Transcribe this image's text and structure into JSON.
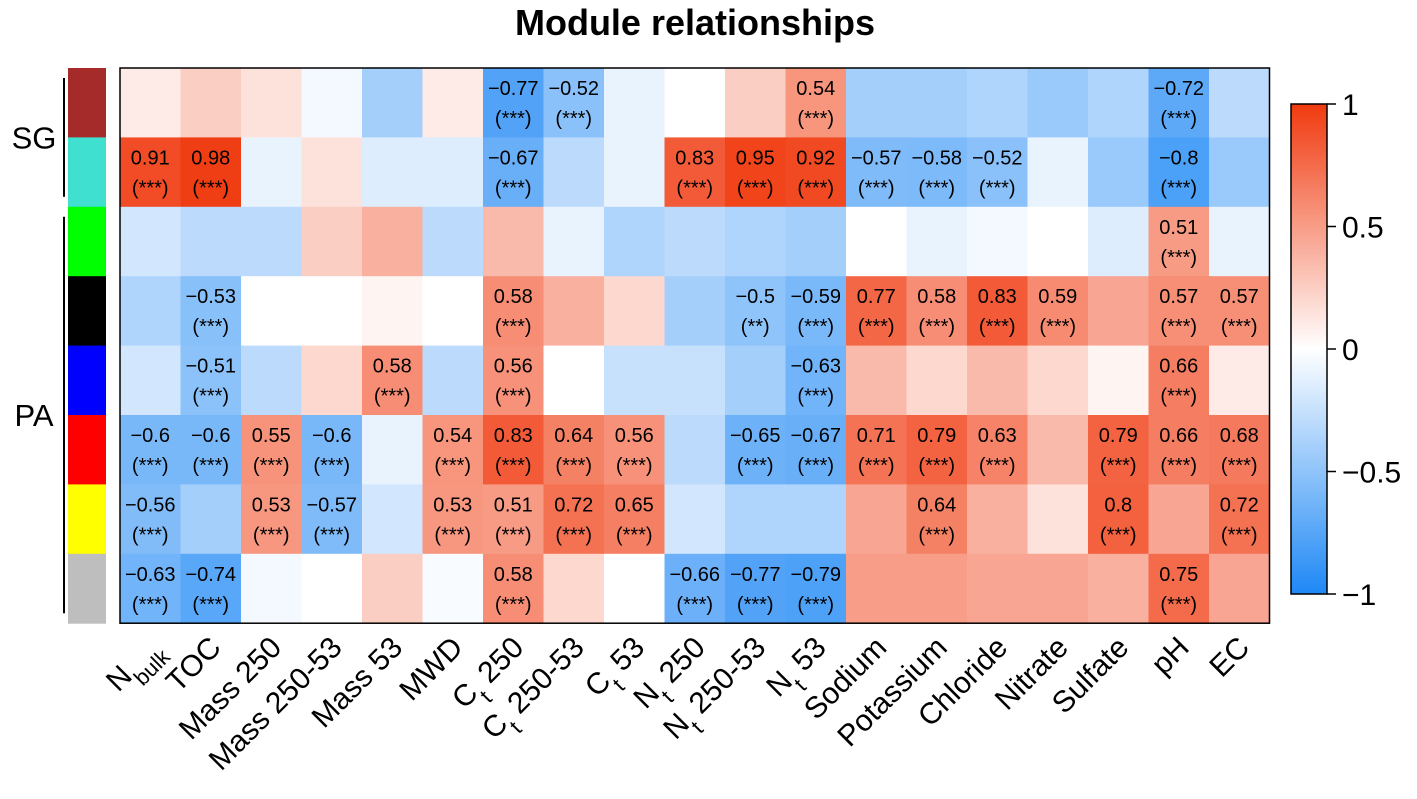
{
  "chart_data": {
    "type": "heatmap",
    "title": "Module relationships",
    "rows": [
      "brown",
      "turquoise",
      "green",
      "black",
      "blue",
      "red",
      "yellow",
      "grey"
    ],
    "row_colors": [
      "#a52a2a",
      "#40e0d0",
      "#00ff00",
      "#000000",
      "#0000ff",
      "#ff0000",
      "#ffff00",
      "#bebebe"
    ],
    "row_groups": [
      {
        "label": "SG",
        "rows": [
          "brown",
          "turquoise"
        ]
      },
      {
        "label": "PA",
        "rows": [
          "green",
          "black",
          "blue",
          "red",
          "yellow",
          "grey"
        ]
      }
    ],
    "columns": [
      {
        "label": "Nbulk",
        "base": "N",
        "sub": "bulk",
        "rest": ""
      },
      {
        "label": "TOC",
        "base": "TOC",
        "sub": "",
        "rest": ""
      },
      {
        "label": "Mass 250",
        "base": "Mass 250",
        "sub": "",
        "rest": ""
      },
      {
        "label": "Mass 250-53",
        "base": "Mass 250-53",
        "sub": "",
        "rest": ""
      },
      {
        "label": "Mass 53",
        "base": "Mass 53",
        "sub": "",
        "rest": ""
      },
      {
        "label": "MWD",
        "base": "MWD",
        "sub": "",
        "rest": ""
      },
      {
        "label": "Ct 250",
        "base": "C",
        "sub": "t",
        "rest": " 250"
      },
      {
        "label": "Ct 250-53",
        "base": "C",
        "sub": "t",
        "rest": " 250-53"
      },
      {
        "label": "Ct 53",
        "base": "C",
        "sub": "t",
        "rest": " 53"
      },
      {
        "label": "Nt 250",
        "base": "N",
        "sub": "t",
        "rest": " 250"
      },
      {
        "label": "Nt 250-53",
        "base": "N",
        "sub": "t",
        "rest": " 250-53"
      },
      {
        "label": "Nt 53",
        "base": "N",
        "sub": "t",
        "rest": " 53"
      },
      {
        "label": "Sodium",
        "base": "Sodium",
        "sub": "",
        "rest": ""
      },
      {
        "label": "Potassium",
        "base": "Potassium",
        "sub": "",
        "rest": ""
      },
      {
        "label": "Chloride",
        "base": "Chloride",
        "sub": "",
        "rest": ""
      },
      {
        "label": "Nitrate",
        "base": "Nitrate",
        "sub": "",
        "rest": ""
      },
      {
        "label": "Sulfate",
        "base": "Sulfate",
        "sub": "",
        "rest": ""
      },
      {
        "label": "pH",
        "base": "pH",
        "sub": "",
        "rest": ""
      },
      {
        "label": "EC",
        "base": "EC",
        "sub": "",
        "rest": ""
      }
    ],
    "values": [
      [
        0.1,
        0.25,
        0.15,
        -0.05,
        -0.4,
        0.1,
        -0.77,
        -0.52,
        -0.1,
        0.0,
        0.25,
        0.54,
        -0.4,
        -0.4,
        -0.35,
        -0.45,
        -0.35,
        -0.72,
        -0.3
      ],
      [
        0.91,
        0.98,
        -0.1,
        0.15,
        -0.15,
        -0.15,
        -0.67,
        -0.3,
        -0.1,
        0.83,
        0.95,
        0.92,
        -0.57,
        -0.58,
        -0.52,
        -0.1,
        -0.45,
        -0.8,
        -0.45
      ],
      [
        -0.2,
        -0.3,
        -0.3,
        0.25,
        0.4,
        -0.3,
        0.35,
        -0.1,
        -0.35,
        -0.3,
        -0.35,
        -0.4,
        0.0,
        -0.1,
        -0.05,
        0.0,
        -0.15,
        0.51,
        -0.1
      ],
      [
        -0.35,
        -0.53,
        0.0,
        0.0,
        0.05,
        0.0,
        0.58,
        0.4,
        0.2,
        -0.4,
        -0.5,
        -0.59,
        0.77,
        0.58,
        0.83,
        0.59,
        0.45,
        0.57,
        0.57
      ],
      [
        -0.2,
        -0.51,
        -0.3,
        0.2,
        0.58,
        -0.3,
        0.56,
        0.0,
        -0.25,
        -0.25,
        -0.4,
        -0.63,
        0.35,
        0.2,
        0.35,
        0.2,
        0.05,
        0.66,
        0.1
      ],
      [
        -0.6,
        -0.6,
        0.55,
        -0.6,
        -0.1,
        0.54,
        0.83,
        0.64,
        0.56,
        -0.3,
        -0.65,
        -0.67,
        0.71,
        0.79,
        0.63,
        0.35,
        0.79,
        0.66,
        0.68
      ],
      [
        -0.56,
        -0.4,
        0.53,
        -0.57,
        -0.2,
        0.53,
        0.51,
        0.72,
        0.65,
        -0.2,
        -0.35,
        -0.35,
        0.45,
        0.64,
        0.4,
        0.15,
        0.8,
        0.45,
        0.72
      ],
      [
        -0.63,
        -0.74,
        -0.05,
        0.0,
        0.25,
        -0.03,
        0.58,
        0.2,
        0.0,
        -0.66,
        -0.77,
        -0.79,
        0.5,
        0.5,
        0.45,
        0.45,
        0.4,
        0.75,
        0.45
      ]
    ],
    "labeled_cells": [
      {
        "row": 0,
        "col": 6,
        "value": "−0.77",
        "sig": "(***)"
      },
      {
        "row": 0,
        "col": 7,
        "value": "−0.52",
        "sig": "(***)"
      },
      {
        "row": 0,
        "col": 11,
        "value": "0.54",
        "sig": "(***)"
      },
      {
        "row": 0,
        "col": 17,
        "value": "−0.72",
        "sig": "(***)"
      },
      {
        "row": 1,
        "col": 0,
        "value": "0.91",
        "sig": "(***)"
      },
      {
        "row": 1,
        "col": 1,
        "value": "0.98",
        "sig": "(***)"
      },
      {
        "row": 1,
        "col": 6,
        "value": "−0.67",
        "sig": "(***)"
      },
      {
        "row": 1,
        "col": 9,
        "value": "0.83",
        "sig": "(***)"
      },
      {
        "row": 1,
        "col": 10,
        "value": "0.95",
        "sig": "(***)"
      },
      {
        "row": 1,
        "col": 11,
        "value": "0.92",
        "sig": "(***)"
      },
      {
        "row": 1,
        "col": 12,
        "value": "−0.57",
        "sig": "(***)"
      },
      {
        "row": 1,
        "col": 13,
        "value": "−0.58",
        "sig": "(***)"
      },
      {
        "row": 1,
        "col": 14,
        "value": "−0.52",
        "sig": "(***)"
      },
      {
        "row": 1,
        "col": 17,
        "value": "−0.8",
        "sig": "(***)"
      },
      {
        "row": 2,
        "col": 17,
        "value": "0.51",
        "sig": "(***)"
      },
      {
        "row": 3,
        "col": 1,
        "value": "−0.53",
        "sig": "(***)"
      },
      {
        "row": 3,
        "col": 6,
        "value": "0.58",
        "sig": "(***)"
      },
      {
        "row": 3,
        "col": 10,
        "value": "−0.5",
        "sig": "(**)"
      },
      {
        "row": 3,
        "col": 11,
        "value": "−0.59",
        "sig": "(***)"
      },
      {
        "row": 3,
        "col": 12,
        "value": "0.77",
        "sig": "(***)"
      },
      {
        "row": 3,
        "col": 13,
        "value": "0.58",
        "sig": "(***)"
      },
      {
        "row": 3,
        "col": 14,
        "value": "0.83",
        "sig": "(***)"
      },
      {
        "row": 3,
        "col": 15,
        "value": "0.59",
        "sig": "(***)"
      },
      {
        "row": 3,
        "col": 17,
        "value": "0.57",
        "sig": "(***)"
      },
      {
        "row": 3,
        "col": 18,
        "value": "0.57",
        "sig": "(***)"
      },
      {
        "row": 4,
        "col": 1,
        "value": "−0.51",
        "sig": "(***)"
      },
      {
        "row": 4,
        "col": 4,
        "value": "0.58",
        "sig": "(***)"
      },
      {
        "row": 4,
        "col": 6,
        "value": "0.56",
        "sig": "(***)"
      },
      {
        "row": 4,
        "col": 11,
        "value": "−0.63",
        "sig": "(***)"
      },
      {
        "row": 4,
        "col": 17,
        "value": "0.66",
        "sig": "(***)"
      },
      {
        "row": 5,
        "col": 0,
        "value": "−0.6",
        "sig": "(***)"
      },
      {
        "row": 5,
        "col": 1,
        "value": "−0.6",
        "sig": "(***)"
      },
      {
        "row": 5,
        "col": 2,
        "value": "0.55",
        "sig": "(***)"
      },
      {
        "row": 5,
        "col": 3,
        "value": "−0.6",
        "sig": "(***)"
      },
      {
        "row": 5,
        "col": 5,
        "value": "0.54",
        "sig": "(***)"
      },
      {
        "row": 5,
        "col": 6,
        "value": "0.83",
        "sig": "(***)"
      },
      {
        "row": 5,
        "col": 7,
        "value": "0.64",
        "sig": "(***)"
      },
      {
        "row": 5,
        "col": 8,
        "value": "0.56",
        "sig": "(***)"
      },
      {
        "row": 5,
        "col": 10,
        "value": "−0.65",
        "sig": "(***)"
      },
      {
        "row": 5,
        "col": 11,
        "value": "−0.67",
        "sig": "(***)"
      },
      {
        "row": 5,
        "col": 12,
        "value": "0.71",
        "sig": "(***)"
      },
      {
        "row": 5,
        "col": 13,
        "value": "0.79",
        "sig": "(***)"
      },
      {
        "row": 5,
        "col": 14,
        "value": "0.63",
        "sig": "(***)"
      },
      {
        "row": 5,
        "col": 16,
        "value": "0.79",
        "sig": "(***)"
      },
      {
        "row": 5,
        "col": 17,
        "value": "0.66",
        "sig": "(***)"
      },
      {
        "row": 5,
        "col": 18,
        "value": "0.68",
        "sig": "(***)"
      },
      {
        "row": 6,
        "col": 0,
        "value": "−0.56",
        "sig": "(***)"
      },
      {
        "row": 6,
        "col": 2,
        "value": "0.53",
        "sig": "(***)"
      },
      {
        "row": 6,
        "col": 3,
        "value": "−0.57",
        "sig": "(***)"
      },
      {
        "row": 6,
        "col": 5,
        "value": "0.53",
        "sig": "(***)"
      },
      {
        "row": 6,
        "col": 6,
        "value": "0.51",
        "sig": "(***)"
      },
      {
        "row": 6,
        "col": 7,
        "value": "0.72",
        "sig": "(***)"
      },
      {
        "row": 6,
        "col": 8,
        "value": "0.65",
        "sig": "(***)"
      },
      {
        "row": 6,
        "col": 13,
        "value": "0.64",
        "sig": "(***)"
      },
      {
        "row": 6,
        "col": 16,
        "value": "0.8",
        "sig": "(***)"
      },
      {
        "row": 6,
        "col": 18,
        "value": "0.72",
        "sig": "(***)"
      },
      {
        "row": 7,
        "col": 0,
        "value": "−0.63",
        "sig": "(***)"
      },
      {
        "row": 7,
        "col": 1,
        "value": "−0.74",
        "sig": "(***)"
      },
      {
        "row": 7,
        "col": 6,
        "value": "0.58",
        "sig": "(***)"
      },
      {
        "row": 7,
        "col": 9,
        "value": "−0.66",
        "sig": "(***)"
      },
      {
        "row": 7,
        "col": 10,
        "value": "−0.77",
        "sig": "(***)"
      },
      {
        "row": 7,
        "col": 11,
        "value": "−0.79",
        "sig": "(***)"
      },
      {
        "row": 7,
        "col": 17,
        "value": "0.75",
        "sig": "(***)"
      }
    ],
    "color_scale": {
      "min": -1,
      "max": 1,
      "low_color": "#1e88f5",
      "mid_color": "#ffffff",
      "high_color": "#f03a0f",
      "ticks": [
        1,
        0.5,
        0,
        -0.5,
        -1
      ],
      "tick_labels": [
        "1",
        "0.5",
        "0",
        "−0.5",
        "−1"
      ]
    }
  }
}
